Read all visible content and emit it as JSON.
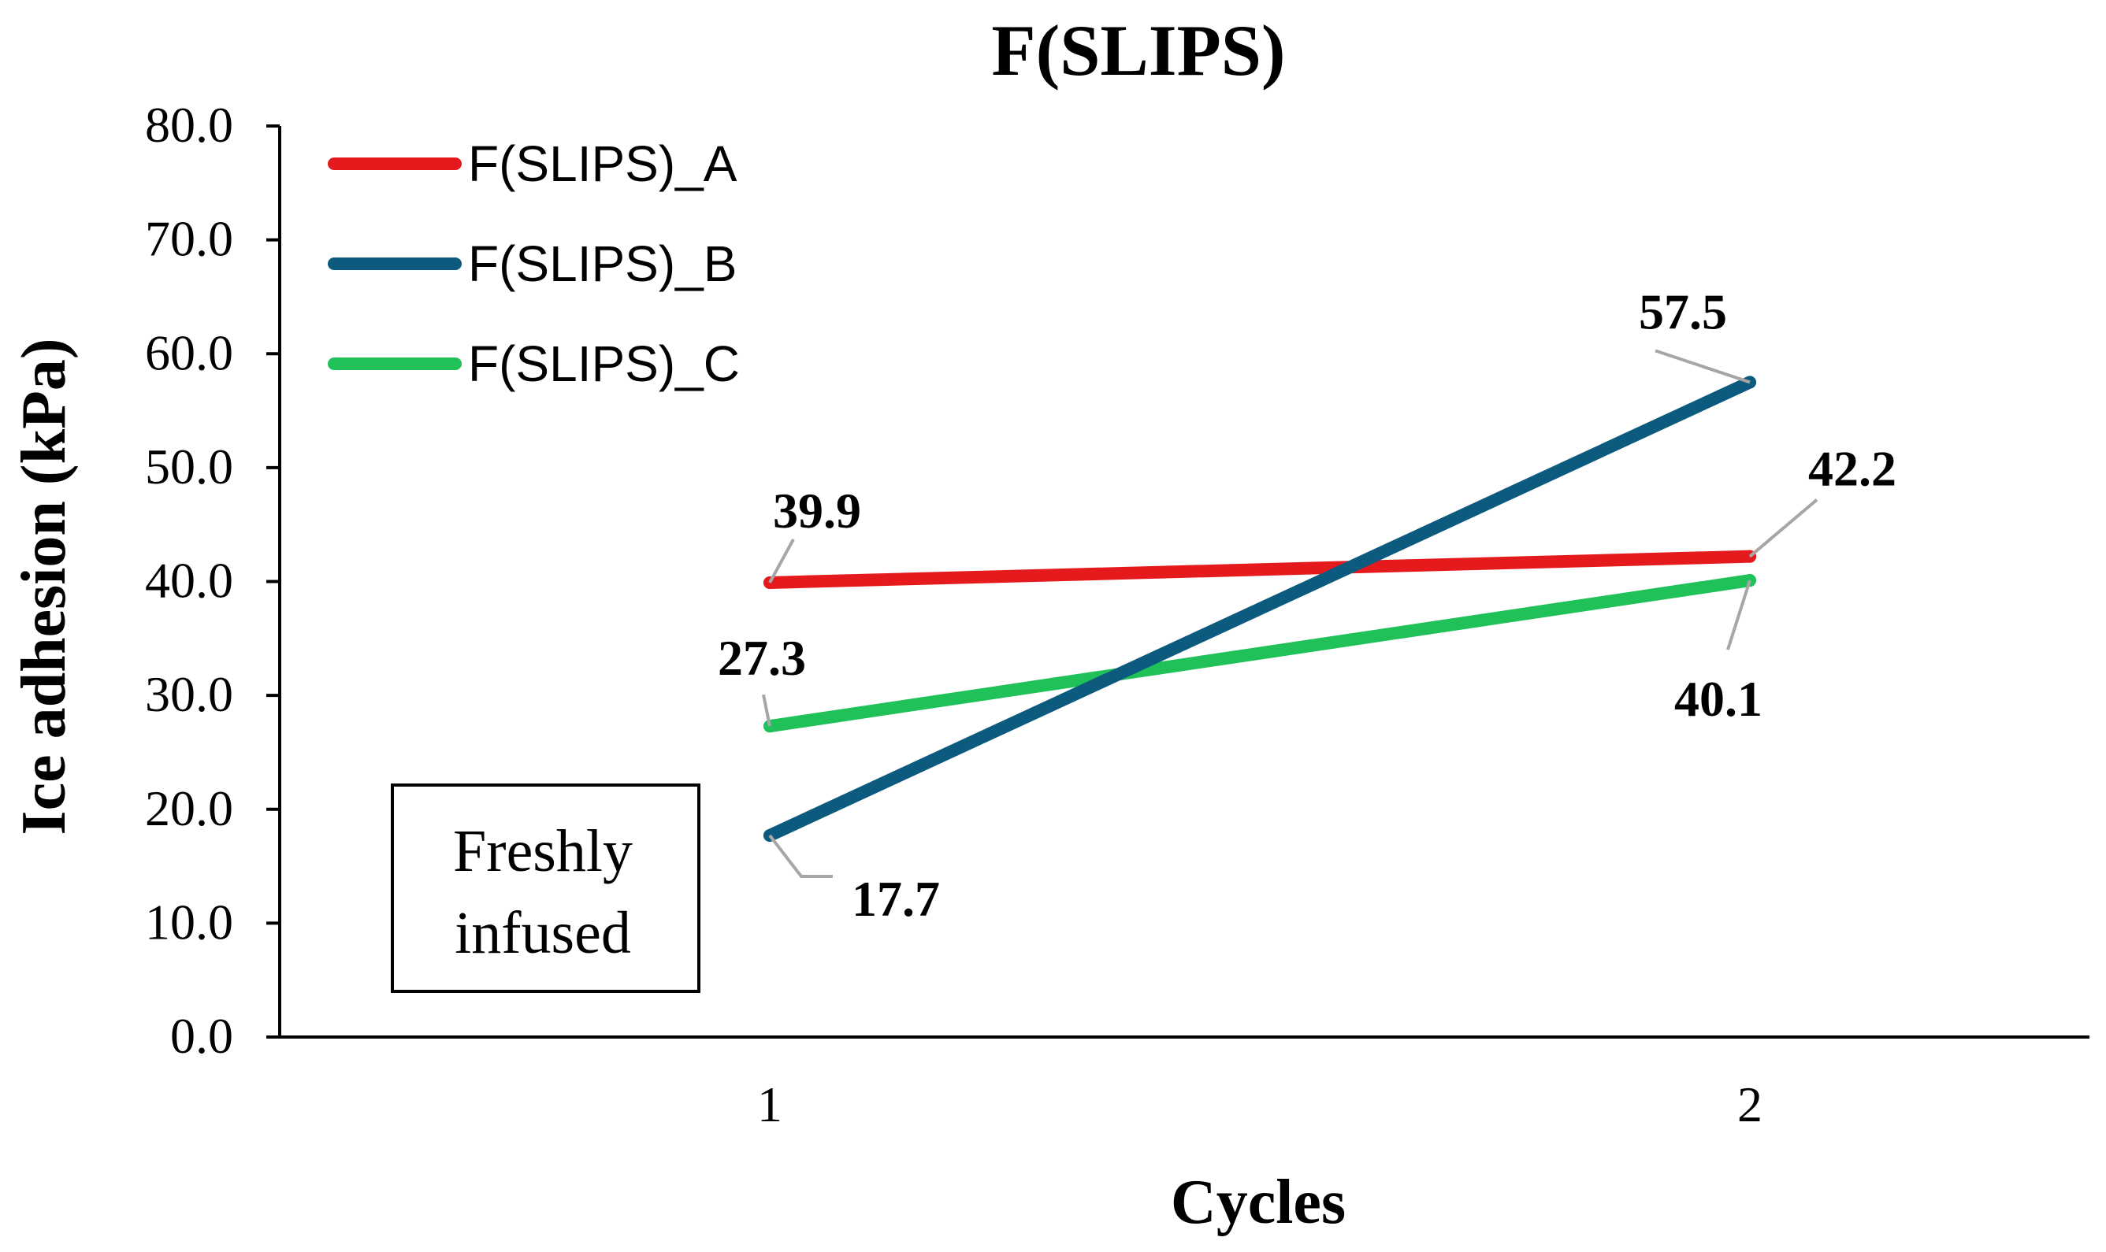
{
  "chart_data": {
    "type": "line",
    "title": "F(SLIPS)",
    "xlabel": "Cycles",
    "ylabel": "Ice adhesion (kPa)",
    "categories": [
      "1",
      "2"
    ],
    "ylim": [
      0,
      80
    ],
    "yticks": [
      "0.0",
      "10.0",
      "20.0",
      "30.0",
      "40.0",
      "50.0",
      "60.0",
      "70.0",
      "80.0"
    ],
    "legend_position": "top-left",
    "series": [
      {
        "name": "F(SLIPS)_A",
        "color": "#e41a1c",
        "values": [
          39.9,
          42.2
        ],
        "labels": [
          "39.9",
          "42.2"
        ]
      },
      {
        "name": "F(SLIPS)_B",
        "color": "#0d5a7f",
        "values": [
          17.7,
          57.5
        ],
        "labels": [
          "17.7",
          "57.5"
        ]
      },
      {
        "name": "F(SLIPS)_C",
        "color": "#1fc158",
        "values": [
          27.3,
          40.1
        ],
        "labels": [
          "27.3",
          "40.1"
        ]
      }
    ],
    "annotation": {
      "line1": "Freshly",
      "line2": "infused"
    }
  }
}
